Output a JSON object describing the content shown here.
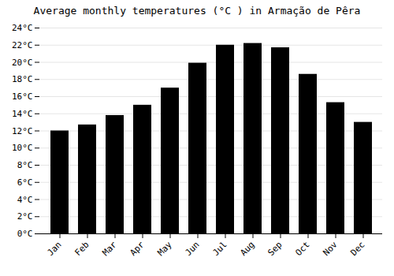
{
  "chart_data": {
    "type": "bar",
    "title": "Average monthly temperatures (°C ) in Armação de Pêra",
    "categories": [
      "Jan",
      "Feb",
      "Mar",
      "Apr",
      "May",
      "Jun",
      "Jul",
      "Aug",
      "Sep",
      "Oct",
      "Nov",
      "Dec"
    ],
    "values": [
      12.0,
      12.7,
      13.8,
      15.0,
      17.0,
      19.9,
      22.0,
      22.2,
      21.7,
      18.6,
      15.3,
      13.0
    ],
    "ylim": [
      0,
      24
    ],
    "yticks": [
      {
        "value": 0,
        "label": "0°C"
      },
      {
        "value": 2,
        "label": "2°C"
      },
      {
        "value": 4,
        "label": "4°C"
      },
      {
        "value": 6,
        "label": "6°C"
      },
      {
        "value": 8,
        "label": "8°C"
      },
      {
        "value": 10,
        "label": "10°C"
      },
      {
        "value": 12,
        "label": "12°C"
      },
      {
        "value": 14,
        "label": "14°C"
      },
      {
        "value": 16,
        "label": "16°C"
      },
      {
        "value": 18,
        "label": "18°C"
      },
      {
        "value": 20,
        "label": "20°C"
      },
      {
        "value": 22,
        "label": "22°C"
      },
      {
        "value": 24,
        "label": "24°C"
      }
    ],
    "grid": true
  }
}
